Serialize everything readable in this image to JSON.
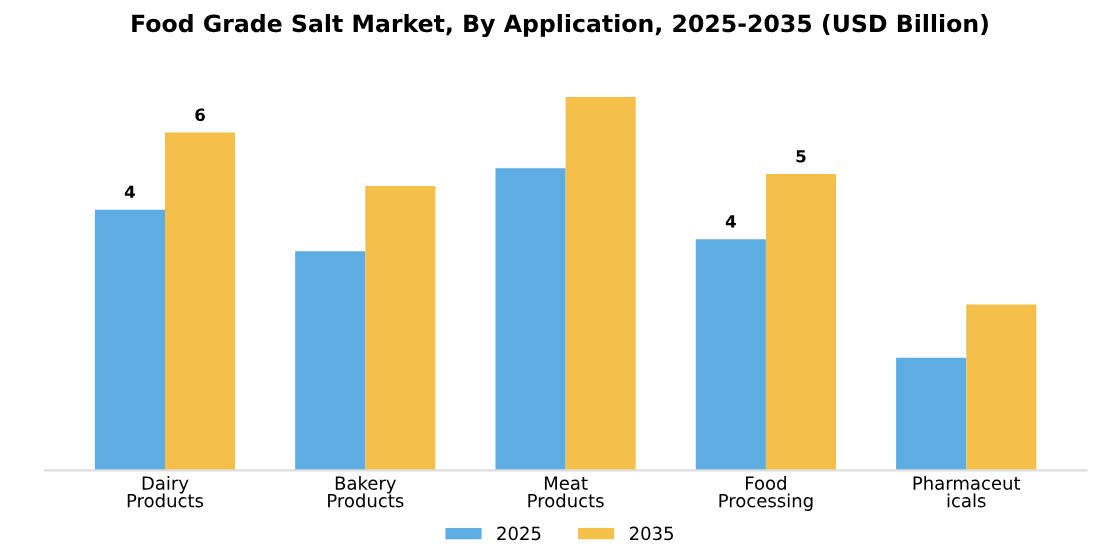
{
  "chart_data": {
    "type": "bar",
    "title": "Food Grade Salt Market, By Application, 2025-2035 (USD Billion)",
    "categories": [
      "Dairy\nProducts",
      "Bakery\nProducts",
      "Meat\nProducts",
      "Food\nProcessing",
      "Pharmaceut\nicals"
    ],
    "series": [
      {
        "name": "2025",
        "color": "#5dade2",
        "values": [
          4.4,
          3.7,
          5.1,
          3.9,
          1.9
        ],
        "value_labels": [
          "4",
          null,
          null,
          "4",
          null
        ]
      },
      {
        "name": "2035",
        "color": "#f5c04a",
        "values": [
          5.7,
          4.8,
          6.3,
          5.0,
          2.8
        ],
        "value_labels": [
          "6",
          null,
          null,
          "5",
          null
        ]
      }
    ],
    "legend": "bottom",
    "grid": false
  }
}
